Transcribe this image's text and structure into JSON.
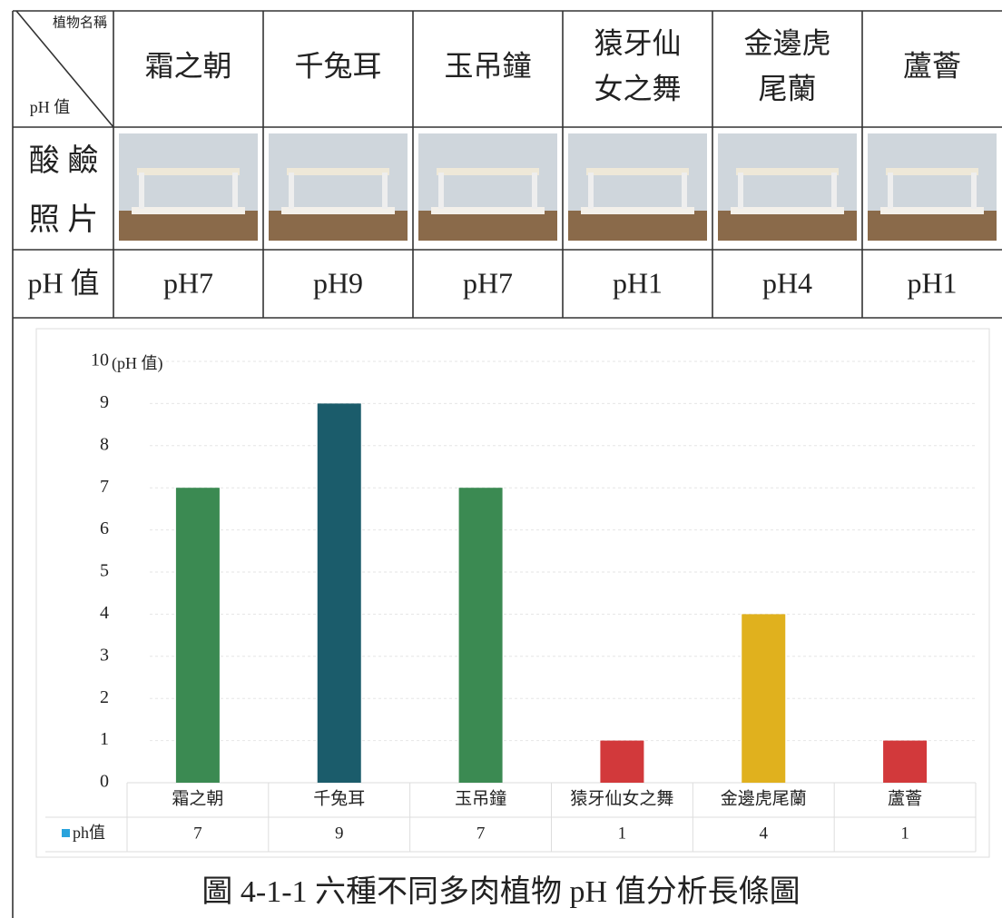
{
  "table": {
    "corner": {
      "top": "植物名稱",
      "bottom": "pH 值"
    },
    "columns": [
      [
        "霜之朝"
      ],
      [
        "千兔耳"
      ],
      [
        "玉吊鐘"
      ],
      [
        "猿牙仙",
        "女之舞"
      ],
      [
        "金邊虎",
        "尾蘭"
      ],
      [
        "蘆薈"
      ]
    ],
    "photo_label": [
      "酸 鹼",
      "照 片"
    ],
    "ph_label": "pH 值",
    "ph": [
      "pH7",
      "pH9",
      "pH7",
      "pH1",
      "pH4",
      "pH1"
    ]
  },
  "chart_data": {
    "type": "bar",
    "y_axis_label": "(pH 值)",
    "categories": [
      "霜之朝",
      "千兔耳",
      "玉吊鐘",
      "猿牙仙女之舞",
      "金邊虎尾蘭",
      "蘆薈"
    ],
    "series": [
      {
        "name": "ph值",
        "color": "#29a3dc",
        "values": [
          7,
          9,
          7,
          1,
          4,
          1
        ]
      }
    ],
    "bar_colors": [
      "#3b8a52",
      "#1b5c6b",
      "#3b8a52",
      "#d2393b",
      "#e0b11e",
      "#d2393b"
    ],
    "ylim": [
      0,
      10
    ],
    "yticks": [
      0,
      1,
      2,
      3,
      4,
      5,
      6,
      7,
      8,
      9,
      10
    ],
    "grid": true
  },
  "caption": "圖 4-1-1 六種不同多肉植物 pH 值分析長條圖"
}
